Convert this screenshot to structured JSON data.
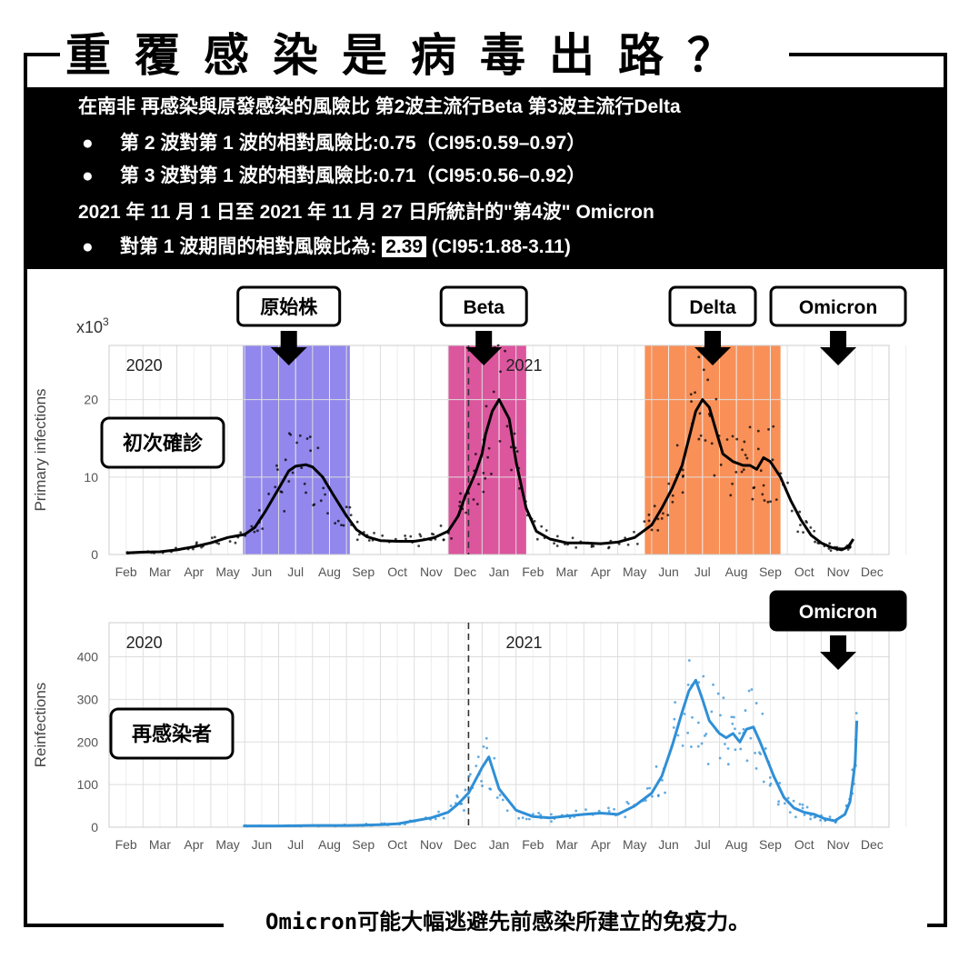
{
  "header": {
    "title": "重覆感染是病毒出路？"
  },
  "info": {
    "line1": "在南非 再感染與原發感染的風險比 第2波主流行Beta 第3波主流行Delta",
    "bullet_char": "●",
    "wave2": "第 2 波對第 1 波的相對風險比:0.75（CI95:0.59–0.97）",
    "wave3": "第 3 波對第 1 波的相對風險比:0.71（CI95:0.56–0.92）",
    "line4": "2021 年 11 月 1 日至 2021 年 11 月 27 日所統計的\"第4波\" Omicron",
    "wave4_prefix": "對第 1 波期間的相對風險比為:",
    "wave4_value": "2.39",
    "wave4_ci": "(CI95:1.88-3.11)"
  },
  "footer": {
    "text": "Omicron可能大幅逃避先前感染所建立的免疫力。"
  },
  "colors": {
    "wave1_band": "#9187ec",
    "wave2_band": "#dc569e",
    "wave3_band": "#f99058",
    "primary_line": "#000000",
    "reinfection_line": "#2f8fd6",
    "grid": "#dddddd"
  },
  "chart_data": [
    {
      "type": "line",
      "ylabel": "Primary infections",
      "multiplier": "x10",
      "multiplier_exp": "3",
      "xlim": [
        0,
        23
      ],
      "ylim": [
        0,
        27
      ],
      "yticks": [
        0,
        10,
        20
      ],
      "x_ticks": [
        "Feb",
        "Mar",
        "Apr",
        "May",
        "Jun",
        "Jul",
        "Aug",
        "Sep",
        "Oct",
        "Nov",
        "Dec",
        "Jan",
        "Feb",
        "Mar",
        "Apr",
        "May",
        "Jun",
        "Jul",
        "Aug",
        "Sep",
        "Oct",
        "Nov",
        "Dec"
      ],
      "year_labels": [
        {
          "text": "2020",
          "x": 0.5
        },
        {
          "text": "2021",
          "x": 11.7
        }
      ],
      "year_divider_x": 10.6,
      "side_label": "初次確診",
      "bands": [
        {
          "from": 3.95,
          "to": 7.1,
          "label": "原始株",
          "color": "wave1"
        },
        {
          "from": 10.0,
          "to": 12.3,
          "label": "Beta",
          "color": "wave2"
        },
        {
          "from": 15.8,
          "to": 19.8,
          "label": "Delta",
          "color": "wave3"
        }
      ],
      "callouts": [
        {
          "label": "原始株",
          "x": 5.3,
          "arrow": true
        },
        {
          "label": "Beta",
          "x": 11.05,
          "arrow": true
        },
        {
          "label": "Delta",
          "x": 17.8,
          "arrow": true
        },
        {
          "label": "Omicron",
          "x": 21.5,
          "arrow": true
        }
      ],
      "series": [
        {
          "x": [
            0.5,
            1,
            1.5,
            2,
            2.5,
            3,
            3.5,
            4,
            4.3,
            4.6,
            5,
            5.3,
            5.5,
            5.8,
            6,
            6.3,
            6.6,
            7,
            7.3,
            7.6,
            8,
            8.5,
            9,
            9.3,
            9.6,
            10,
            10.3,
            10.5,
            10.8,
            11,
            11.1,
            11.3,
            11.5,
            11.8,
            12,
            12.3,
            12.6,
            13,
            13.5,
            14,
            14.5,
            15,
            15.5,
            16,
            16.3,
            16.6,
            16.9,
            17.1,
            17.3,
            17.5,
            17.7,
            17.9,
            18.1,
            18.4,
            18.7,
            18.9,
            19.1,
            19.3,
            19.5,
            19.8,
            20.1,
            20.4,
            20.7,
            21,
            21.3,
            21.6,
            21.8,
            21.95
          ],
          "y": [
            0.2,
            0.3,
            0.35,
            0.6,
            1.0,
            1.5,
            2.2,
            2.6,
            3.5,
            5.5,
            8.5,
            10.8,
            11.4,
            11.6,
            11.3,
            10.0,
            7.8,
            5.0,
            3.2,
            2.3,
            1.8,
            1.7,
            1.7,
            1.9,
            2.2,
            3.0,
            5.0,
            7.5,
            10.5,
            13.0,
            15.5,
            18.5,
            20.0,
            17.5,
            12.0,
            6.0,
            3.0,
            2.0,
            1.5,
            1.5,
            1.4,
            1.6,
            2.2,
            3.8,
            6.0,
            8.5,
            11.5,
            15.0,
            18.5,
            20.0,
            19.0,
            16.0,
            13.0,
            12.0,
            11.5,
            11.5,
            11.0,
            12.5,
            12.0,
            10.0,
            7.0,
            4.5,
            2.5,
            1.5,
            0.9,
            0.6,
            1.0,
            2.0
          ]
        }
      ]
    },
    {
      "type": "line",
      "ylabel": "Reinfections",
      "xlim": [
        0,
        23
      ],
      "ylim": [
        0,
        480
      ],
      "yticks": [
        0,
        100,
        200,
        300,
        400
      ],
      "x_ticks": [
        "Feb",
        "Mar",
        "Apr",
        "May",
        "Jun",
        "Jul",
        "Aug",
        "Sep",
        "Oct",
        "Nov",
        "Dec",
        "Jan",
        "Feb",
        "Mar",
        "Apr",
        "May",
        "Jun",
        "Jul",
        "Aug",
        "Sep",
        "Oct",
        "Nov",
        "Dec"
      ],
      "year_labels": [
        {
          "text": "2020",
          "x": 0.5
        },
        {
          "text": "2021",
          "x": 11.7
        }
      ],
      "year_divider_x": 10.6,
      "side_label": "再感染者",
      "callouts": [
        {
          "label": "Omicron",
          "x": 21.5,
          "arrow": true
        }
      ],
      "series": [
        {
          "x": [
            3.95,
            5,
            6,
            7,
            7.5,
            8,
            8.5,
            9,
            9.5,
            10,
            10.3,
            10.6,
            10.8,
            11.0,
            11.2,
            11.5,
            12,
            12.5,
            13,
            13.5,
            14,
            14.5,
            15,
            15.5,
            16,
            16.3,
            16.6,
            16.9,
            17.1,
            17.3,
            17.5,
            17.7,
            18.0,
            18.2,
            18.4,
            18.6,
            18.8,
            19.0,
            19.2,
            19.4,
            19.6,
            19.9,
            20.2,
            20.5,
            20.8,
            21.1,
            21.4,
            21.7,
            21.85,
            22.0,
            22.05
          ],
          "y": [
            3,
            3,
            4,
            4,
            5,
            6,
            8,
            15,
            22,
            35,
            55,
            80,
            110,
            140,
            165,
            90,
            40,
            25,
            22,
            26,
            30,
            33,
            30,
            50,
            80,
            120,
            190,
            270,
            320,
            345,
            300,
            250,
            220,
            210,
            220,
            200,
            230,
            235,
            200,
            160,
            120,
            70,
            45,
            35,
            30,
            20,
            15,
            30,
            60,
            150,
            250
          ]
        }
      ]
    }
  ]
}
